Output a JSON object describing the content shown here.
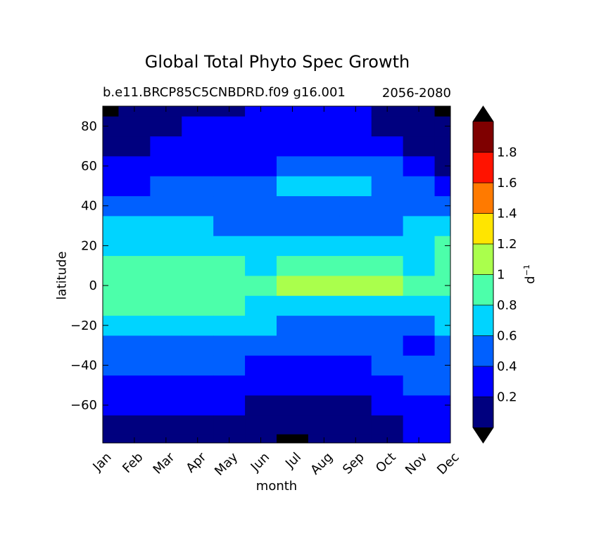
{
  "chart_data": {
    "type": "heatmap",
    "title": "Global Total Phyto Spec Growth",
    "subtitle_left": "b.e11.BRCP85C5CNBDRD.f09 g16.001",
    "subtitle_right": "2056-2080",
    "xlabel": "month",
    "ylabel": "latitude",
    "x_categories": [
      "Jan",
      "Feb",
      "Mar",
      "Apr",
      "May",
      "Jun",
      "Jul",
      "Aug",
      "Sep",
      "Oct",
      "Nov",
      "Dec"
    ],
    "y_ticks": [
      80,
      60,
      40,
      20,
      0,
      -20,
      -40,
      -60
    ],
    "ylim": [
      -79,
      90
    ],
    "colorbar": {
      "label": "d",
      "label_exponent": "−1",
      "levels": [
        0,
        0.2,
        0.4,
        0.6,
        0.8,
        1.0,
        1.2,
        1.4,
        1.6,
        1.8,
        2.0
      ],
      "tick_labels": [
        "0.2",
        "0.4",
        "0.6",
        "0.8",
        "1",
        "1.2",
        "1.4",
        "1.6",
        "1.8"
      ],
      "colors": [
        "#00007f",
        "#0000ff",
        "#0060ff",
        "#00d4ff",
        "#4cffaa",
        "#aaff4c",
        "#ffe500",
        "#ff7a00",
        "#ff1300",
        "#7f0000"
      ],
      "under_color": "#000000",
      "over_color": "#000000"
    },
    "bands_by_month": {
      "lat_rows": [
        -79,
        -70,
        -60,
        -50,
        -40,
        -30,
        -20,
        -10,
        0,
        10,
        20,
        30,
        40,
        50,
        60,
        70,
        80,
        90
      ],
      "values": [
        [
          0.15,
          0.15,
          0.3,
          0.3,
          0.5,
          0.5,
          0.7,
          0.9,
          0.9,
          0.9,
          0.7,
          0.7,
          0.5,
          0.3,
          0.3,
          0.1,
          0.1,
          -0.1
        ],
        [
          0.15,
          0.15,
          0.3,
          0.3,
          0.5,
          0.5,
          0.7,
          0.9,
          0.9,
          0.9,
          0.7,
          0.7,
          0.5,
          0.3,
          0.3,
          0.1,
          0.1,
          0.1
        ],
        [
          0.1,
          0.15,
          0.3,
          0.3,
          0.5,
          0.5,
          0.7,
          0.9,
          0.9,
          0.9,
          0.7,
          0.7,
          0.5,
          0.5,
          0.3,
          0.3,
          0.1,
          0.1
        ],
        [
          0.1,
          0.1,
          0.3,
          0.3,
          0.5,
          0.5,
          0.7,
          0.9,
          0.9,
          0.9,
          0.7,
          0.7,
          0.5,
          0.5,
          0.3,
          0.3,
          0.3,
          0.1
        ],
        [
          0.1,
          0.1,
          0.3,
          0.3,
          0.5,
          0.5,
          0.7,
          0.9,
          0.9,
          0.9,
          0.7,
          0.5,
          0.5,
          0.5,
          0.3,
          0.3,
          0.3,
          0.1
        ],
        [
          0.1,
          0.1,
          0.1,
          0.3,
          0.3,
          0.5,
          0.7,
          0.7,
          0.9,
          0.7,
          0.7,
          0.5,
          0.5,
          0.5,
          0.3,
          0.3,
          0.3,
          0.3
        ],
        [
          -0.1,
          0.1,
          0.1,
          0.3,
          0.3,
          0.5,
          0.5,
          0.7,
          1.1,
          0.9,
          0.7,
          0.5,
          0.5,
          0.7,
          0.5,
          0.3,
          0.3,
          0.3
        ],
        [
          0.1,
          0.1,
          0.1,
          0.3,
          0.3,
          0.5,
          0.5,
          0.7,
          1.1,
          0.9,
          0.7,
          0.5,
          0.5,
          0.7,
          0.5,
          0.3,
          0.3,
          0.3
        ],
        [
          0.1,
          0.1,
          0.1,
          0.3,
          0.3,
          0.5,
          0.5,
          0.7,
          1.1,
          0.9,
          0.7,
          0.5,
          0.5,
          0.7,
          0.5,
          0.3,
          0.3,
          0.3
        ],
        [
          0.1,
          0.1,
          0.3,
          0.3,
          0.5,
          0.5,
          0.5,
          0.7,
          1.1,
          0.9,
          0.7,
          0.5,
          0.5,
          0.5,
          0.5,
          0.3,
          0.1,
          0.1
        ],
        [
          0.3,
          0.3,
          0.3,
          0.5,
          0.5,
          0.3,
          0.5,
          0.7,
          0.9,
          0.7,
          0.7,
          0.7,
          0.5,
          0.5,
          0.3,
          0.1,
          0.1,
          0.1
        ],
        [
          0.3,
          0.3,
          0.3,
          0.5,
          0.5,
          0.5,
          0.7,
          0.7,
          0.9,
          0.9,
          0.9,
          0.7,
          0.5,
          0.3,
          0.1,
          0.1,
          0.1,
          -0.1
        ]
      ]
    }
  }
}
